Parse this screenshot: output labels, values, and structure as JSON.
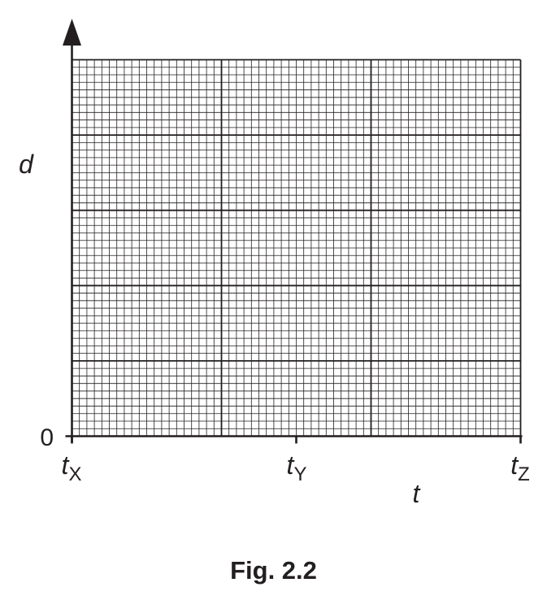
{
  "chart_data": {
    "type": "line",
    "series": [],
    "x": {
      "label": "t",
      "tick_labels": [
        {
          "main": "t",
          "sub": "X"
        },
        {
          "main": "t",
          "sub": "Y"
        },
        {
          "main": "t",
          "sub": "Z"
        }
      ]
    },
    "y": {
      "label": "d",
      "tick_labels": [
        "0"
      ]
    },
    "grid": true
  },
  "caption": "Fig. 2.2",
  "colors": {
    "ink": "#231f20"
  }
}
